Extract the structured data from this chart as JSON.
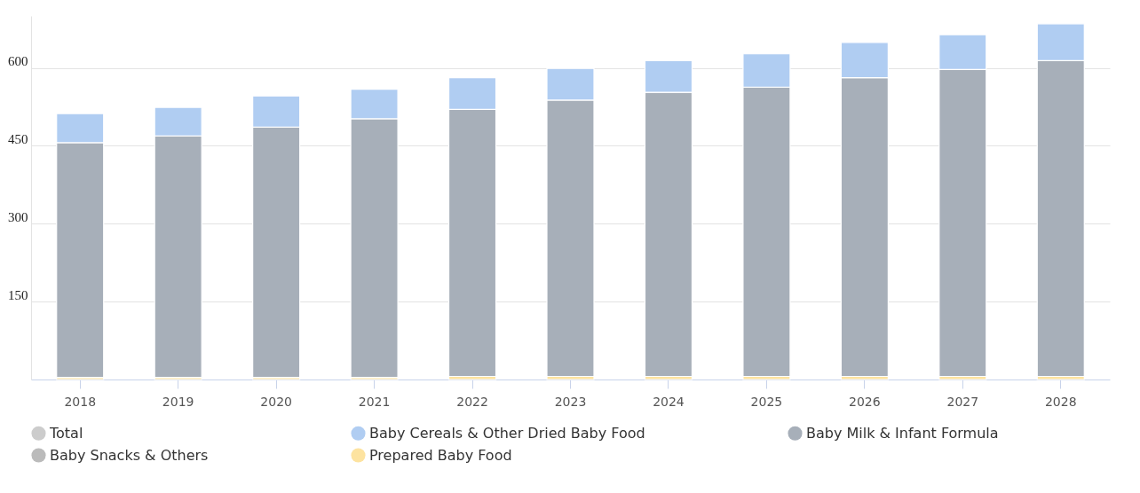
{
  "chart_data": {
    "type": "bar",
    "stacked": true,
    "categories": [
      "2018",
      "2019",
      "2020",
      "2021",
      "2022",
      "2023",
      "2024",
      "2025",
      "2026",
      "2027",
      "2028"
    ],
    "series": [
      {
        "name": "Prepared Baby Food",
        "color": "#fde3a0",
        "values": [
          4,
          4,
          4,
          4,
          6,
          6,
          6,
          6,
          6,
          6,
          6
        ]
      },
      {
        "name": "Baby Snacks & Others",
        "color": "#bbbbbb",
        "values": [
          null,
          null,
          null,
          null,
          null,
          null,
          null,
          null,
          null,
          null,
          null
        ]
      },
      {
        "name": "Baby Milk & Infant Formula",
        "color": "#a7afb9",
        "values": [
          452,
          465,
          482,
          498,
          514,
          532,
          547,
          557,
          575,
          591,
          608
        ]
      },
      {
        "name": "Baby Cereals & Other Dried Baby Food",
        "color": "#b0cdf2",
        "values": [
          56,
          55,
          60,
          57,
          61,
          61,
          61,
          64,
          68,
          67,
          71
        ]
      },
      {
        "name": "Total",
        "color": "#cccccc",
        "values": [
          null,
          null,
          null,
          null,
          null,
          null,
          null,
          null,
          null,
          null,
          null
        ]
      }
    ],
    "ylim": [
      0,
      700
    ],
    "yticks": [
      150,
      300,
      450,
      600
    ],
    "grid": "y",
    "legend": "bottom"
  }
}
